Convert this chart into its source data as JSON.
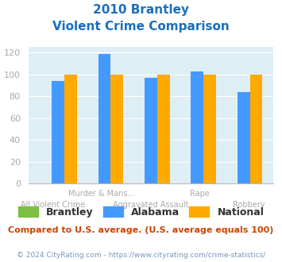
{
  "title_line1": "2010 Brantley",
  "title_line2": "Violent Crime Comparison",
  "bar_color_brantley": "#7bc043",
  "bar_color_alabama": "#4499ff",
  "bar_color_national": "#ffaa00",
  "background_color": "#deeef5",
  "ylim": [
    0,
    125
  ],
  "yticks": [
    0,
    20,
    40,
    60,
    80,
    100,
    120
  ],
  "title_color": "#1a6fbd",
  "note_color": "#cc4400",
  "footer_color": "#7799bb",
  "label_color": "#aaaaaa",
  "legend_text_color": "#333333",
  "note": "Compared to U.S. average. (U.S. average equals 100)",
  "footer": "© 2024 CityRating.com - https://www.cityrating.com/crime-statistics/",
  "n_groups": 5,
  "alabama_vals": [
    94,
    119,
    97,
    103,
    84
  ],
  "national_vals": [
    100,
    100,
    100,
    100,
    100
  ],
  "brantley_vals": [
    0,
    0,
    0,
    0,
    0
  ],
  "cat_labels_row1": [
    "",
    "Murder & Mans...",
    "",
    "Rape",
    ""
  ],
  "cat_labels_row2": [
    "All Violent Crime",
    "",
    "Aggravated Assault",
    "",
    "Robbery"
  ]
}
